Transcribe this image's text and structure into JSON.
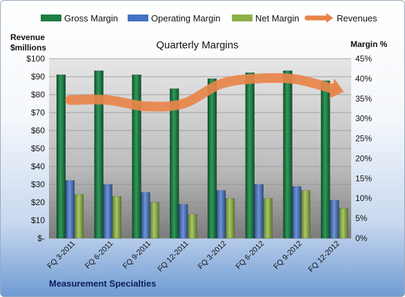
{
  "chart_data": {
    "type": "bar",
    "title": "Quarterly Margins",
    "company": "Measurement Specialties",
    "categories": [
      "FQ 3-2011",
      "FQ 6-2011",
      "FQ 9-2011",
      "FQ 12-2011",
      "FQ 3-2012",
      "FQ 6-2012",
      "FQ 9-2012",
      "FQ 12-2012"
    ],
    "series": [
      {
        "name": "Gross Margin",
        "axis": "right",
        "color": "#1e7d45",
        "values": [
          41,
          42,
          41,
          37.5,
          40,
          41.5,
          42,
          39.5
        ]
      },
      {
        "name": "Operating Margin",
        "axis": "right",
        "color": "#4472c4",
        "values": [
          14.5,
          13.5,
          11.5,
          8.5,
          12,
          13.5,
          13,
          9.5
        ]
      },
      {
        "name": "Net Margin",
        "axis": "right",
        "color": "#8db04a",
        "values": [
          11,
          10.5,
          9,
          6,
          10,
          10,
          12,
          7.5
        ]
      },
      {
        "name": "Revenues",
        "type": "line",
        "axis": "left",
        "color": "#e8844a",
        "values": [
          77,
          77,
          73.5,
          75,
          86,
          89,
          88.5,
          83
        ]
      }
    ],
    "y_left": {
      "label_line1": "Revenue",
      "label_line2": "$millions",
      "min": 0,
      "max": 100,
      "step": 10,
      "ticks": [
        "$-",
        "$10",
        "$20",
        "$30",
        "$40",
        "$50",
        "$60",
        "$70",
        "$80",
        "$90",
        "$100"
      ]
    },
    "y_right": {
      "label": "Margin %",
      "min": 0,
      "max": 45,
      "step": 5,
      "ticks": [
        "0%",
        "5%",
        "10%",
        "15%",
        "20%",
        "25%",
        "30%",
        "35%",
        "40%",
        "45%"
      ]
    },
    "legend_position": "top",
    "grid": true
  }
}
